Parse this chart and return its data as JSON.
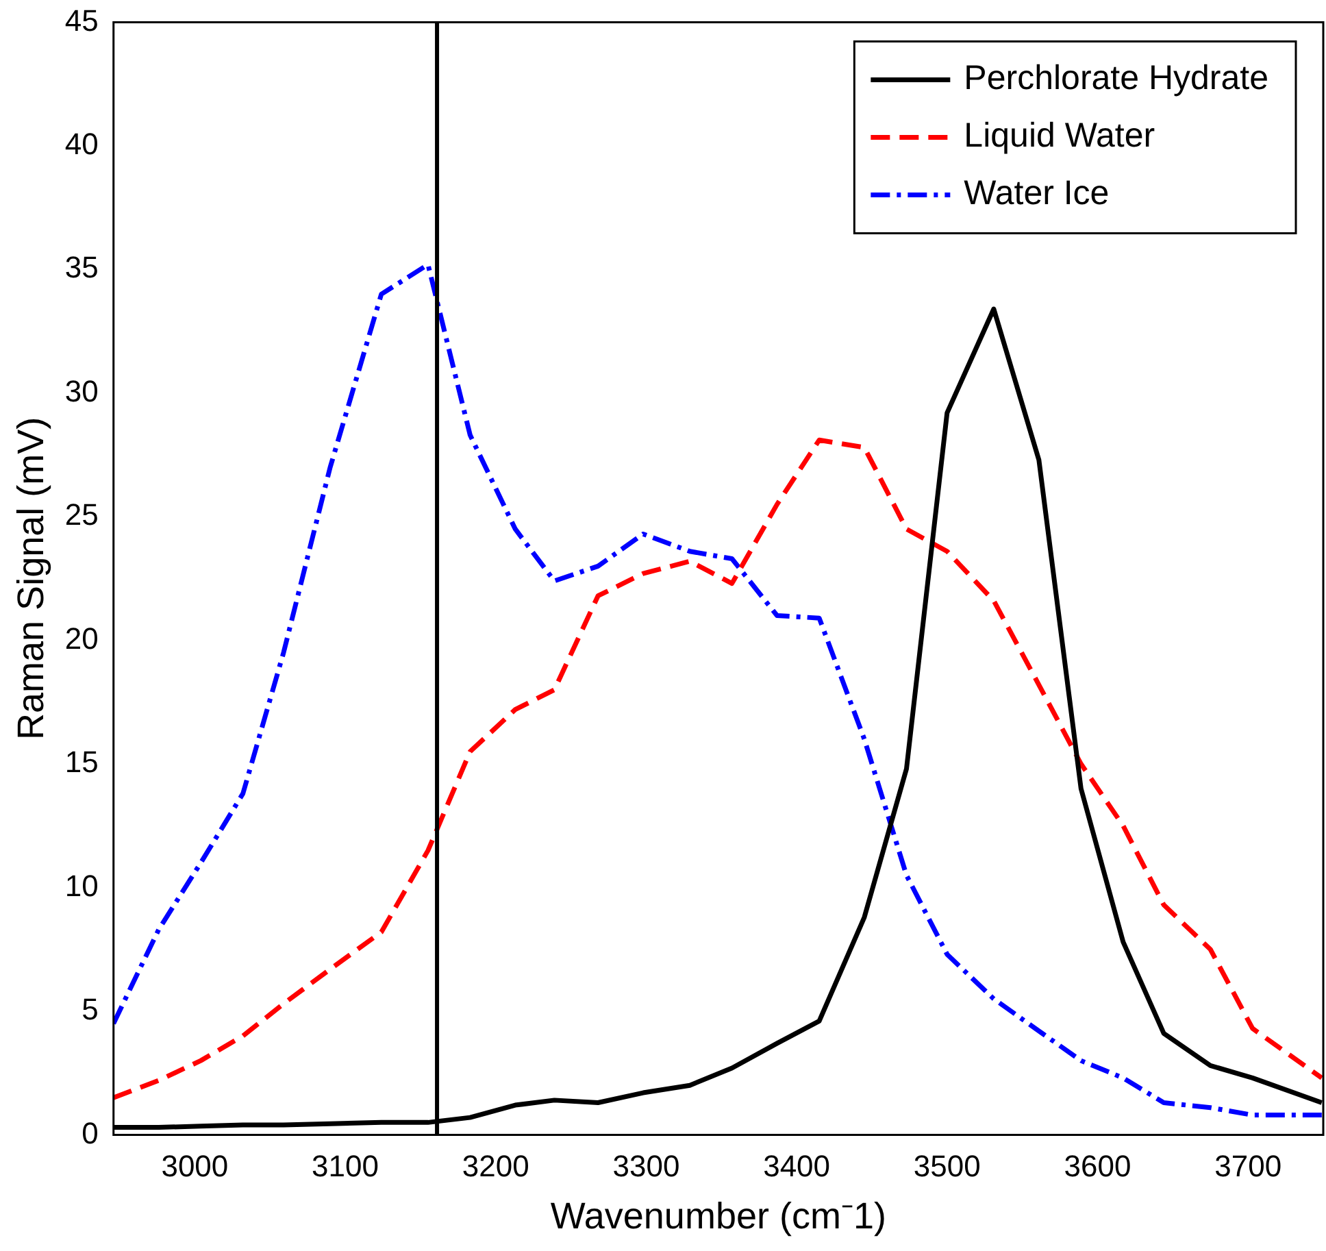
{
  "chart_data": {
    "type": "line",
    "xlabel": "Wavenumber (cm⁻1)",
    "ylabel": "Raman Signal (mV)",
    "x": [
      2946,
      2976,
      3004,
      3032,
      3059,
      3090,
      3124,
      3155,
      3183,
      3213,
      3239,
      3268,
      3298,
      3329,
      3357,
      3387,
      3415,
      3445,
      3473,
      3500,
      3531,
      3561,
      3589,
      3617,
      3644,
      3675,
      3703,
      3749
    ],
    "series": [
      {
        "name": "Perchlorate Hydrate",
        "color": "#000000",
        "line_style": "solid",
        "values": [
          0.3,
          0.3,
          0.35,
          0.4,
          0.4,
          0.45,
          0.5,
          0.5,
          0.7,
          1.2,
          1.4,
          1.3,
          1.7,
          2,
          2.7,
          3.7,
          4.6,
          8.8,
          14.8,
          29.2,
          33.4,
          27.3,
          14,
          7.8,
          4.1,
          2.8,
          2.3,
          1.3
        ]
      },
      {
        "name": "Liquid Water",
        "color": "#ff0000",
        "line_style": "dashed",
        "values": [
          1.5,
          2.2,
          3,
          4,
          5.3,
          6.7,
          8.2,
          11.5,
          15.5,
          17.2,
          18,
          21.8,
          22.7,
          23.2,
          22.3,
          25.5,
          28.1,
          27.8,
          24.5,
          23.6,
          21.6,
          18.2,
          15,
          12.5,
          9.3,
          7.5,
          4.3,
          2.3
        ]
      },
      {
        "name": "Water Ice",
        "color": "#0000ff",
        "line_style": "dashdot",
        "values": [
          4.5,
          8.3,
          11,
          13.8,
          19.5,
          27,
          34,
          35.2,
          28.3,
          24.5,
          22.4,
          23,
          24.3,
          23.6,
          23.3,
          21,
          20.9,
          16,
          10.5,
          7.3,
          5.5,
          4.2,
          3,
          2.3,
          1.3,
          1.1,
          0.8,
          0.8
        ]
      }
    ],
    "xlim": [
      2946,
      3750
    ],
    "xticks": [
      3000,
      3100,
      3200,
      3300,
      3400,
      3500,
      3600,
      3700
    ],
    "ylim": [
      0,
      45
    ],
    "yticks": [
      0,
      5,
      10,
      15,
      20,
      25,
      30,
      35,
      40,
      45
    ],
    "ref_lines": [
      {
        "axis": "x",
        "value": 3161,
        "color": "#000000"
      }
    ],
    "grid": false,
    "legend": "top right"
  }
}
